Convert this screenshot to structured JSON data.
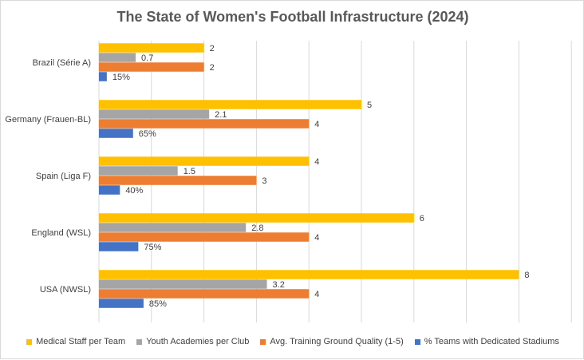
{
  "chart_data": {
    "type": "bar",
    "orientation": "horizontal",
    "title": "The State of Women's Football Infrastructure (2024)",
    "categories": [
      "USA (NWSL)",
      "England (WSL)",
      "Spain (Liga F)",
      "Germany (Frauen-BL)",
      "Brazil (Série A)"
    ],
    "series": [
      {
        "name": "Medical Staff per Team",
        "color": "#ffc000",
        "values": [
          8,
          6,
          4,
          5,
          2
        ],
        "labels": [
          "8",
          "6",
          "4",
          "5",
          "2"
        ]
      },
      {
        "name": "Youth Academies per Club",
        "color": "#a5a5a5",
        "values": [
          3.2,
          2.8,
          1.5,
          2.1,
          0.7
        ],
        "labels": [
          "3.2",
          "2.8",
          "1.5",
          "2.1",
          "0.7"
        ]
      },
      {
        "name": "Avg. Training Ground Quality (1-5)",
        "color": "#ed7d31",
        "values": [
          4,
          4,
          3,
          4,
          2
        ],
        "labels": [
          "4",
          "4",
          "3",
          "4",
          "2"
        ]
      },
      {
        "name": "% Teams with Dedicated Stadiums",
        "color": "#4472c4",
        "values": [
          0.85,
          0.75,
          0.4,
          0.65,
          0.15
        ],
        "labels": [
          "85%",
          "75%",
          "40%",
          "65%",
          "15%"
        ]
      }
    ],
    "xlim": [
      0,
      9
    ],
    "x_gridlines": [
      0,
      1,
      2,
      3,
      4,
      5,
      6,
      7,
      8,
      9
    ],
    "grid": true,
    "legend": "bottom"
  }
}
